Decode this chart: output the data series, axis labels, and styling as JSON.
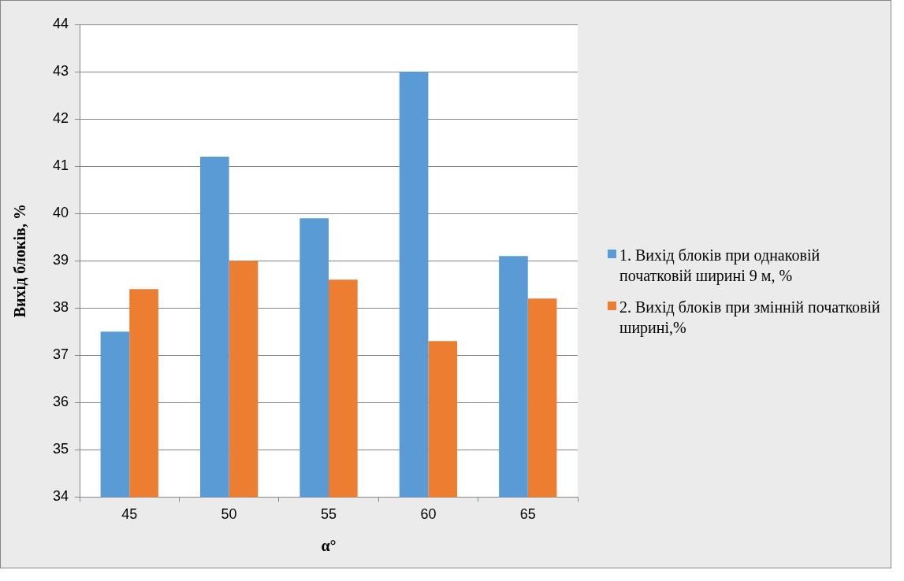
{
  "chart_data": {
    "type": "bar",
    "xlabel": "α°",
    "ylabel": "Вихід блоків, %",
    "categories": [
      "45",
      "50",
      "55",
      "60",
      "65"
    ],
    "series": [
      {
        "name": "1. Вихід блоків при однаковій початковій ширині  9 м, %",
        "color": "#5b9bd5",
        "values": [
          37.5,
          41.2,
          39.9,
          43.0,
          39.1
        ]
      },
      {
        "name": "2. Вихід блоків  при змінній початковій ширині,%",
        "color": "#ed7d31",
        "values": [
          38.4,
          39.0,
          38.6,
          37.3,
          38.2
        ]
      }
    ],
    "ylim": [
      34,
      44
    ],
    "yticks": [
      34,
      35,
      36,
      37,
      38,
      39,
      40,
      41,
      42,
      43,
      44
    ],
    "grid": "y",
    "legend": "right"
  }
}
